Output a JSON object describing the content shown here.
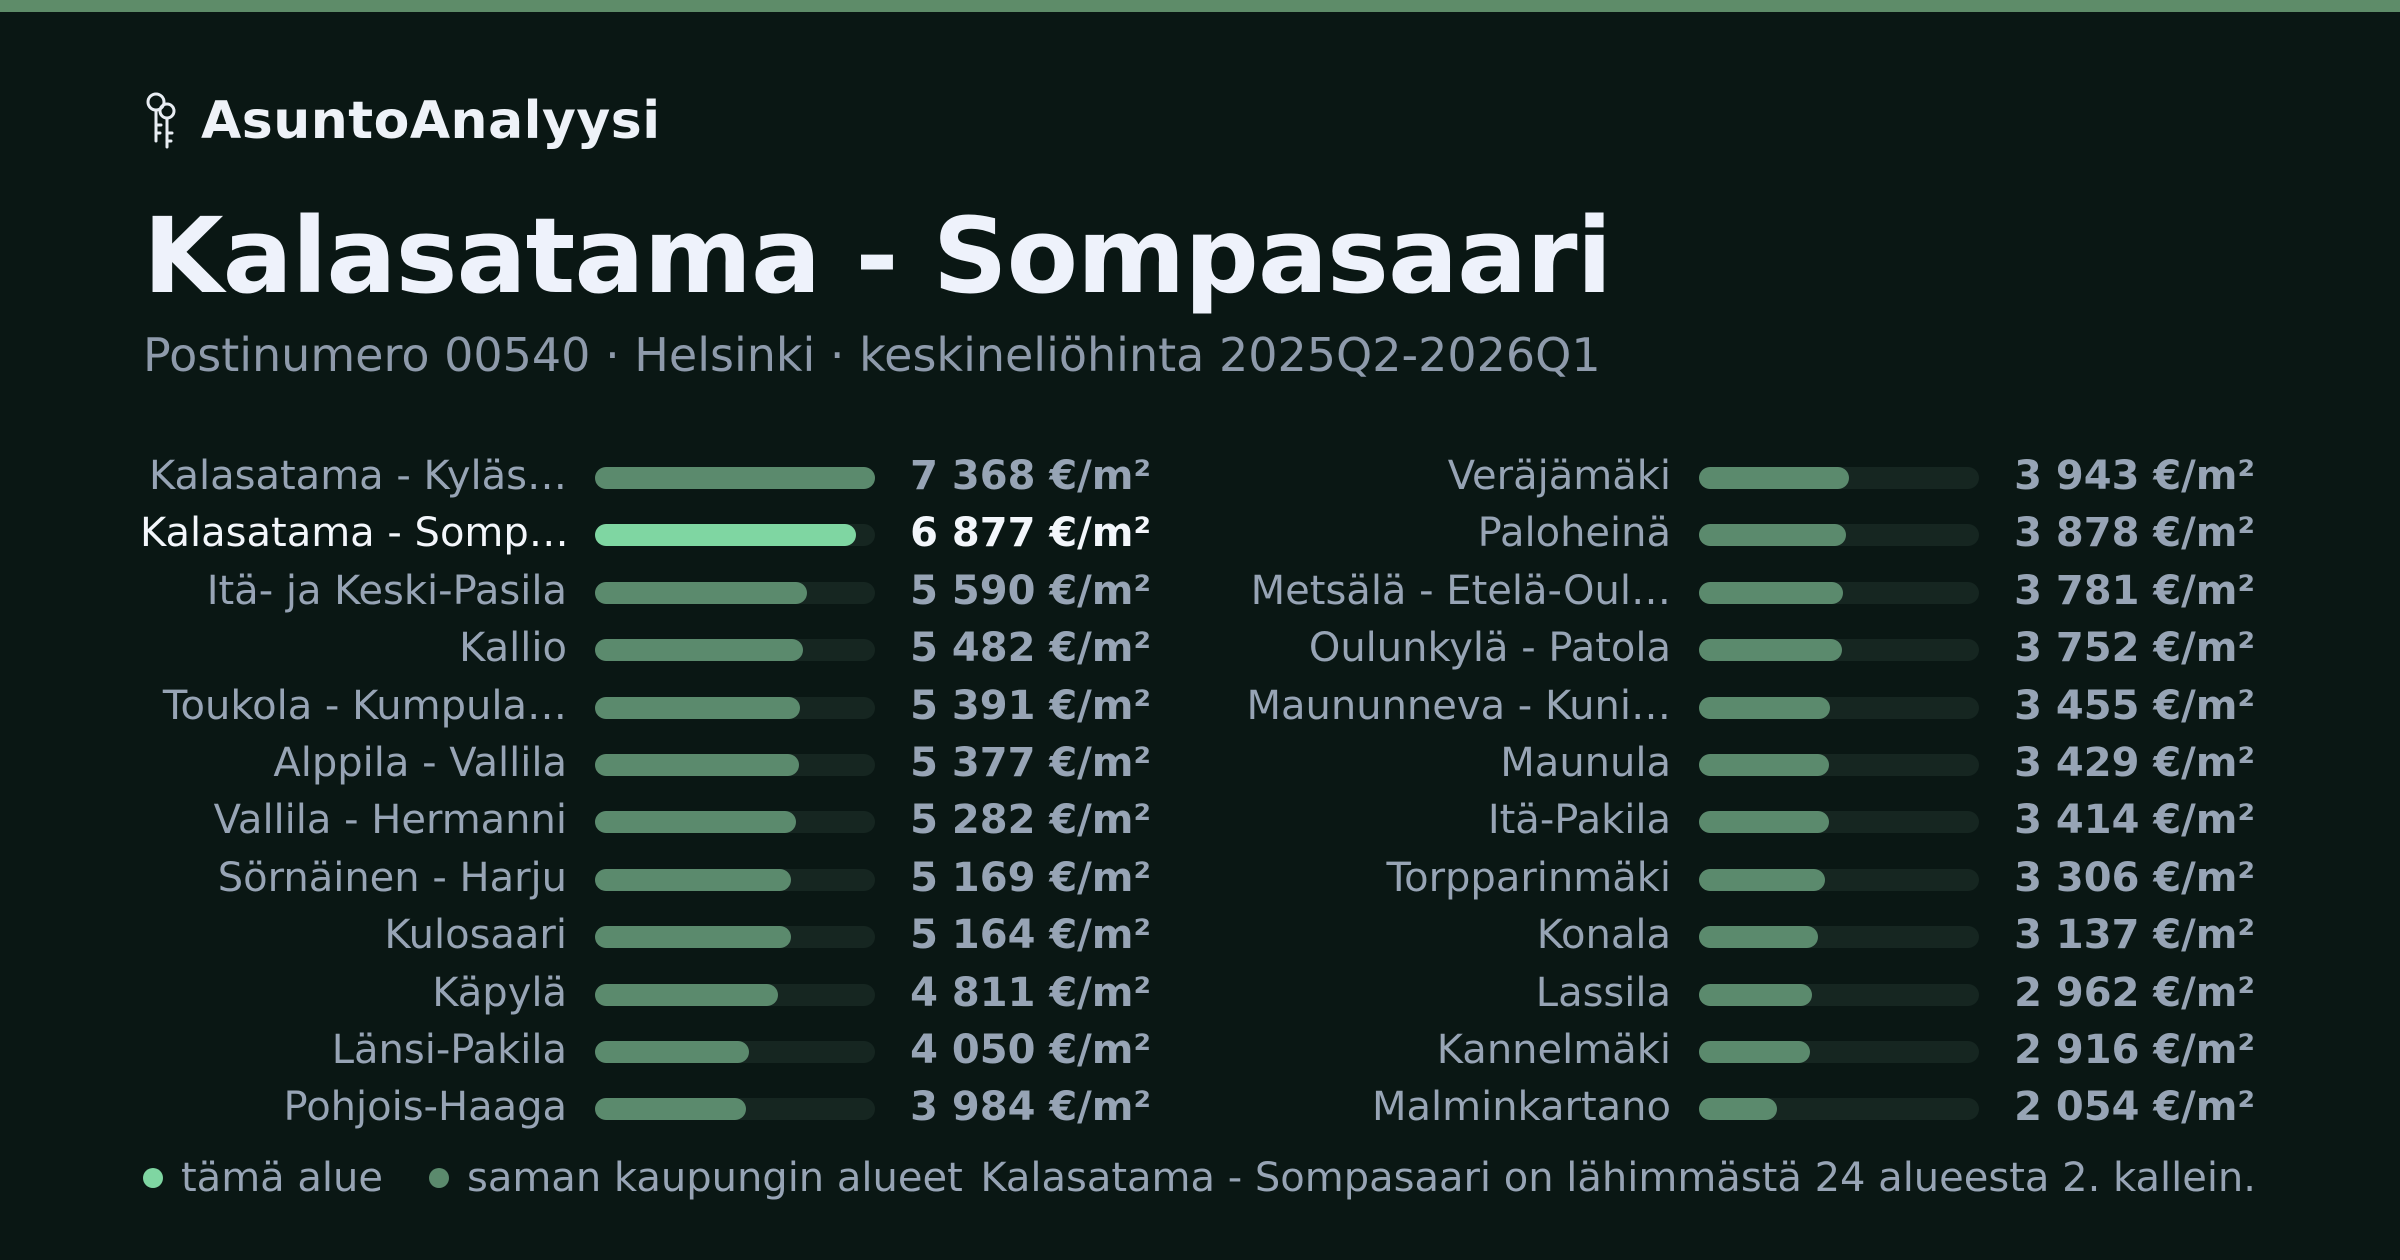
{
  "brand": {
    "name": "AsuntoAnalyysi",
    "icon": "keys-icon"
  },
  "title": "Kalasatama - Sompasaari",
  "subtitle": "Postinumero 00540 · Helsinki · keskineliöhinta 2025Q2-2026Q1",
  "colors": {
    "current": "#7fd6a2",
    "others": "#5b8a6d",
    "track": "#162621",
    "topbar": "#5e8c69"
  },
  "chart_data": {
    "type": "bar",
    "orientation": "horizontal",
    "unit": "€/m²",
    "xlim": [
      0,
      7368
    ],
    "current_index": 1,
    "categories": [
      "Kalasatama - Kyläs…",
      "Kalasatama - Somp…",
      "Itä- ja Keski-Pasila",
      "Kallio",
      "Toukola - Kumpula…",
      "Alppila - Vallila",
      "Vallila - Hermanni",
      "Sörnäinen - Harju",
      "Kulosaari",
      "Käpylä",
      "Länsi-Pakila",
      "Pohjois-Haaga",
      "Veräjämäki",
      "Paloheinä",
      "Metsälä - Etelä-Oul…",
      "Oulunkylä - Patola",
      "Maununneva - Kuni…",
      "Maunula",
      "Itä-Pakila",
      "Torpparinmäki",
      "Konala",
      "Lassila",
      "Kannelmäki",
      "Malminkartano"
    ],
    "values": [
      7368,
      6877,
      5590,
      5482,
      5391,
      5377,
      5282,
      5169,
      5164,
      4811,
      4050,
      3984,
      3943,
      3878,
      3781,
      3752,
      3455,
      3429,
      3414,
      3306,
      3137,
      2962,
      2916,
      2054
    ],
    "value_labels": [
      "7 368 €/m²",
      "6 877 €/m²",
      "5 590 €/m²",
      "5 482 €/m²",
      "5 391 €/m²",
      "5 377 €/m²",
      "5 282 €/m²",
      "5 169 €/m²",
      "5 164 €/m²",
      "4 811 €/m²",
      "4 050 €/m²",
      "3 984 €/m²",
      "3 943 €/m²",
      "3 878 €/m²",
      "3 781 €/m²",
      "3 752 €/m²",
      "3 455 €/m²",
      "3 429 €/m²",
      "3 414 €/m²",
      "3 306 €/m²",
      "3 137 €/m²",
      "2 962 €/m²",
      "2 916 €/m²",
      "2 054 €/m²"
    ]
  },
  "legend": {
    "current": "tämä alue",
    "others": "saman kaupungin alueet"
  },
  "footnote": "Kalasatama - Sompasaari on lähimmästä 24 alueesta 2. kallein."
}
